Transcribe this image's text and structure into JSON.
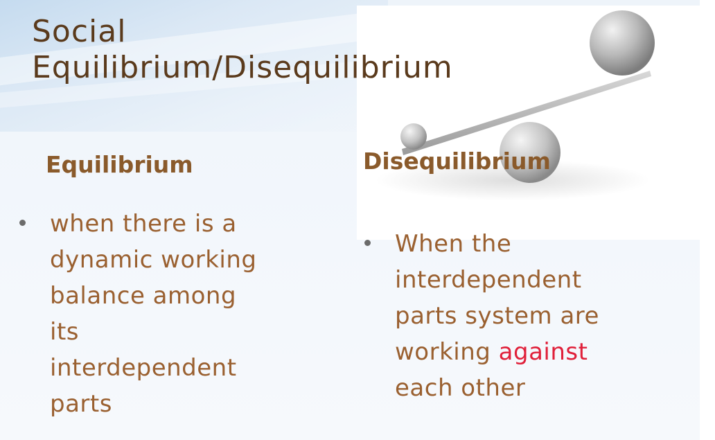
{
  "slide": {
    "title_line1": "Social",
    "title_line2": "Equilibrium/Disequilibrium",
    "left": {
      "heading": "Equilibrium",
      "lines": [
        "when there is a",
        "dynamic working",
        "balance among",
        "its",
        "interdependent",
        "parts"
      ]
    },
    "right": {
      "heading": "Disequilibrium",
      "lines": [
        "When the",
        "interdependent",
        "parts system are"
      ],
      "line4_pre": "working",
      "line4_accent": "against",
      "line5": "each other"
    }
  },
  "colors": {
    "title": "#5a3a1c",
    "heading": "#8a5a2b",
    "body": "#9a6030",
    "accent": "#e0203a"
  },
  "icons": {
    "balance_image": "seesaw-with-spheres"
  }
}
